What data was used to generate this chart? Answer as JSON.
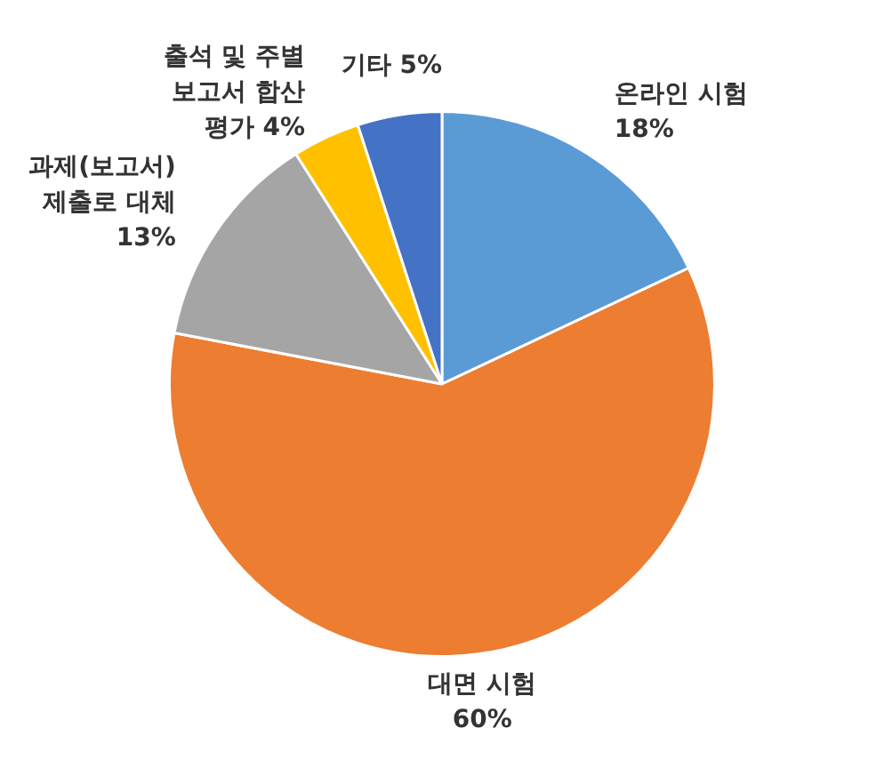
{
  "chart_data": {
    "type": "pie",
    "categories": [
      "온라인 시험",
      "대면 시험",
      "과제(보고서)\n제출로 대체",
      "출석 및 주별\n보고서 합산\n평가",
      "기타"
    ],
    "values": [
      18,
      60,
      13,
      4,
      5
    ],
    "colors": [
      "#5b9bd5",
      "#ed7d31",
      "#a5a5a5",
      "#ffc000",
      "#4472c4"
    ],
    "value_labels": [
      "18%",
      "60%",
      "13%",
      "4%",
      "5%"
    ],
    "legend": false
  }
}
